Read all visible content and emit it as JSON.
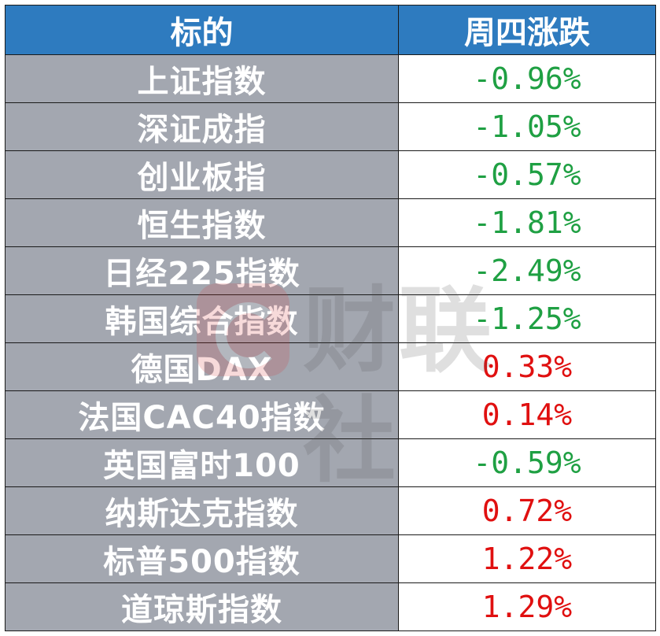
{
  "header": {
    "col_name": "标的",
    "col_change": "周四涨跌"
  },
  "rows": [
    {
      "name": "上证指数",
      "change": "-0.96%",
      "direction": "down"
    },
    {
      "name": "深证成指",
      "change": "-1.05%",
      "direction": "down"
    },
    {
      "name": "创业板指",
      "change": "-0.57%",
      "direction": "down"
    },
    {
      "name": "恒生指数",
      "change": "-1.81%",
      "direction": "down"
    },
    {
      "name": "日经225指数",
      "change": "-2.49%",
      "direction": "down"
    },
    {
      "name": "韩国综合指数",
      "change": "-1.25%",
      "direction": "down"
    },
    {
      "name": "德国DAX",
      "change": "0.33%",
      "direction": "up"
    },
    {
      "name": "法国CAC40指数",
      "change": "0.14%",
      "direction": "up"
    },
    {
      "name": "英国富时100",
      "change": "-0.59%",
      "direction": "down"
    },
    {
      "name": "纳斯达克指数",
      "change": "0.72%",
      "direction": "up"
    },
    {
      "name": "标普500指数",
      "change": "1.22%",
      "direction": "up"
    },
    {
      "name": "道琼斯指数",
      "change": "1.29%",
      "direction": "up"
    }
  ],
  "watermark": {
    "text": "财联社"
  },
  "colors": {
    "header_bg": "#2e7bbf",
    "name_bg": "#a3a7b0",
    "down": "#1fa043",
    "up": "#e01010"
  }
}
